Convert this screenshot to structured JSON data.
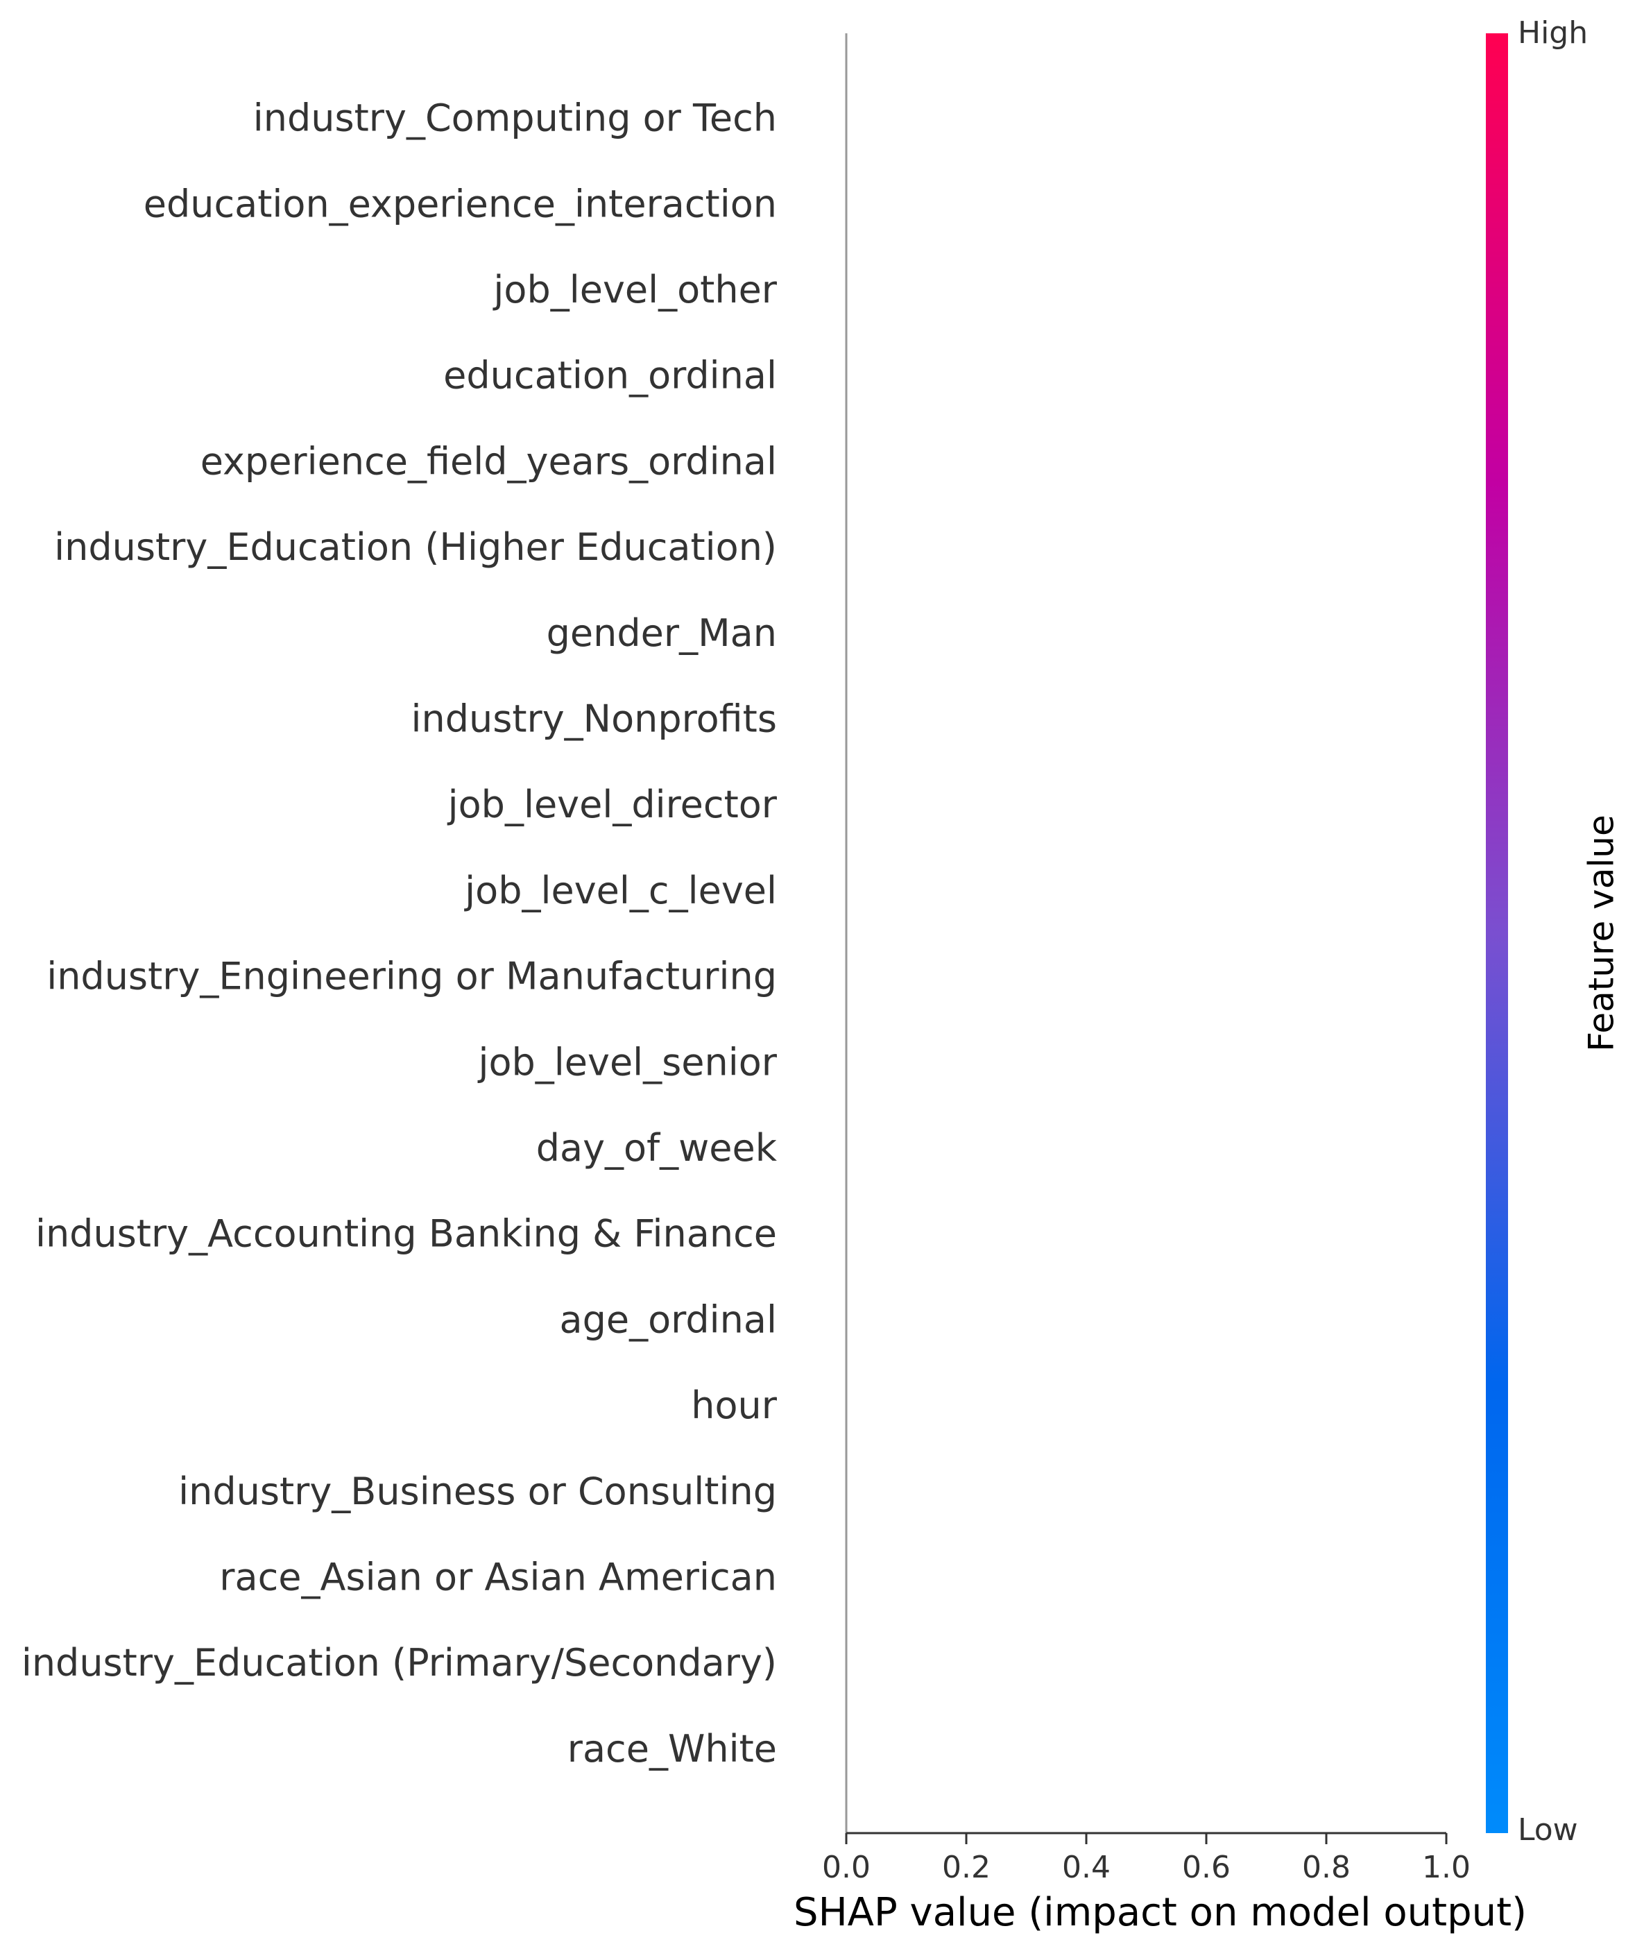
{
  "chart_data": {
    "type": "scatter",
    "subtype": "shap-beeswarm",
    "title": "",
    "xlabel": "SHAP value (impact on model output)",
    "ylabel": "",
    "xlim": [
      0.0,
      1.0
    ],
    "x_ticks": [
      "0.0",
      "0.2",
      "0.4",
      "0.6",
      "0.8",
      "1.0"
    ],
    "features": [
      "industry_Computing or Tech",
      "education_experience_interaction",
      "job_level_other",
      "education_ordinal",
      "experience_field_years_ordinal",
      "industry_Education (Higher Education)",
      "gender_Man",
      "industry_Nonprofits",
      "job_level_director",
      "job_level_c_level",
      "industry_Engineering or Manufacturing",
      "job_level_senior",
      "day_of_week",
      "industry_Accounting Banking & Finance",
      "age_ordinal",
      "hour",
      "industry_Business or Consulting",
      "race_Asian or Asian American",
      "industry_Education (Primary/Secondary)",
      "race_White"
    ],
    "points": [],
    "zero_line_x": 0.0,
    "grid": false,
    "colorbar": {
      "label": "Feature value",
      "high_label": "High",
      "low_label": "Low",
      "colors": [
        "#008bfb",
        "#0066ee",
        "#7a4fd0",
        "#c200a3",
        "#ff0051"
      ]
    },
    "colors": {
      "text": "#333333",
      "axis": "#333333",
      "zero_line": "#999999"
    }
  }
}
